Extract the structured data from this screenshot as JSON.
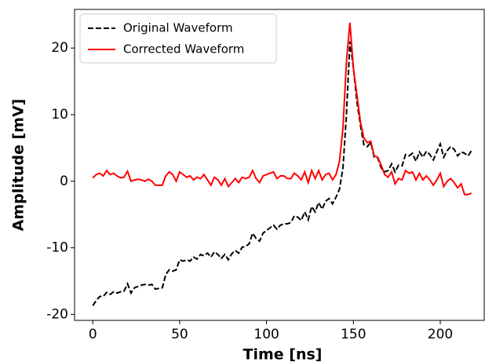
{
  "chart_data": {
    "type": "line",
    "xlabel": "Time [ns]",
    "ylabel": "Amplitude [mV]",
    "x": [
      0,
      2,
      4,
      6,
      8,
      10,
      12,
      14,
      16,
      18,
      20,
      22,
      24,
      26,
      28,
      30,
      32,
      34,
      36,
      38,
      40,
      42,
      44,
      46,
      48,
      50,
      52,
      54,
      56,
      58,
      60,
      62,
      64,
      66,
      68,
      70,
      72,
      74,
      76,
      78,
      80,
      82,
      84,
      86,
      88,
      90,
      92,
      94,
      96,
      98,
      100,
      102,
      104,
      106,
      108,
      110,
      112,
      114,
      116,
      118,
      120,
      122,
      124,
      126,
      128,
      130,
      132,
      134,
      136,
      138,
      140,
      142,
      144,
      146,
      148,
      150,
      152,
      154,
      156,
      158,
      160,
      162,
      164,
      166,
      168,
      170,
      172,
      174,
      176,
      178,
      180,
      182,
      184,
      186,
      188,
      190,
      192,
      194,
      196,
      198,
      200,
      202,
      204,
      206,
      208,
      210,
      212,
      214,
      216,
      218
    ],
    "series": [
      {
        "name": "Original Waveform",
        "color": "#000000",
        "dash": true,
        "values": [
          -18.7,
          -17.9,
          -17.3,
          -17.3,
          -16.7,
          -17.0,
          -16.6,
          -16.8,
          -16.6,
          -16.5,
          -15.4,
          -16.8,
          -16.0,
          -15.8,
          -15.6,
          -15.5,
          -15.6,
          -15.5,
          -16.2,
          -16.1,
          -16.0,
          -14.0,
          -13.3,
          -13.5,
          -13.3,
          -11.8,
          -12.0,
          -11.8,
          -12.0,
          -11.4,
          -11.7,
          -11.0,
          -11.2,
          -10.8,
          -11.4,
          -10.6,
          -11.0,
          -11.6,
          -11.0,
          -11.8,
          -10.9,
          -10.4,
          -10.8,
          -9.9,
          -9.8,
          -9.4,
          -7.8,
          -8.6,
          -9.0,
          -7.8,
          -7.4,
          -7.0,
          -6.6,
          -7.2,
          -6.6,
          -6.4,
          -6.4,
          -6.2,
          -5.2,
          -5.4,
          -5.9,
          -4.6,
          -5.8,
          -3.8,
          -4.6,
          -3.2,
          -4.2,
          -3.0,
          -2.6,
          -3.4,
          -2.4,
          -1.2,
          2.0,
          10.0,
          21.0,
          17.0,
          12.0,
          8.5,
          5.5,
          5.2,
          5.8,
          3.6,
          3.5,
          2.0,
          1.4,
          1.6,
          2.6,
          1.4,
          2.4,
          2.3,
          4.0,
          3.8,
          4.2,
          3.0,
          4.4,
          3.6,
          4.5,
          4.0,
          3.2,
          4.4,
          5.6,
          3.6,
          4.6,
          5.2,
          4.8,
          3.8,
          4.4,
          4.2,
          3.8,
          4.6
        ]
      },
      {
        "name": "Corrected Waveform",
        "color": "#ff0000",
        "dash": false,
        "values": [
          0.5,
          1.0,
          1.2,
          0.8,
          1.6,
          1.0,
          1.2,
          0.8,
          0.5,
          0.6,
          1.5,
          0.0,
          0.2,
          0.3,
          0.2,
          0.0,
          0.3,
          0.0,
          -0.6,
          -0.6,
          -0.6,
          0.8,
          1.4,
          1.0,
          0.0,
          1.4,
          1.0,
          0.6,
          0.8,
          0.2,
          0.6,
          0.4,
          1.0,
          0.2,
          -0.6,
          0.6,
          0.2,
          -0.6,
          0.4,
          -0.8,
          -0.2,
          0.4,
          -0.2,
          0.6,
          0.4,
          0.6,
          1.6,
          0.4,
          -0.2,
          0.8,
          1.0,
          1.2,
          1.4,
          0.4,
          0.8,
          0.8,
          0.4,
          0.4,
          1.2,
          0.8,
          0.2,
          1.4,
          -0.2,
          1.6,
          0.4,
          1.6,
          0.2,
          1.0,
          1.2,
          0.2,
          1.0,
          3.0,
          8.0,
          18.0,
          23.8,
          17.0,
          13.0,
          9.0,
          6.5,
          5.8,
          6.0,
          3.8,
          3.6,
          2.4,
          1.0,
          0.6,
          1.4,
          -0.4,
          0.4,
          0.2,
          1.6,
          1.2,
          1.4,
          0.2,
          1.2,
          0.2,
          0.8,
          0.2,
          -0.6,
          0.2,
          1.2,
          -0.8,
          0.0,
          0.4,
          -0.2,
          -1.0,
          -0.4,
          -2.0,
          -2.0,
          -1.8
        ]
      }
    ],
    "xlim": [
      -10.5,
      225.3
    ],
    "ylim": [
      -20.9,
      25.8
    ],
    "xticks": [
      0,
      50,
      100,
      150,
      200
    ],
    "yticks": [
      -20,
      -10,
      0,
      10,
      20
    ],
    "legend": "upper left"
  }
}
